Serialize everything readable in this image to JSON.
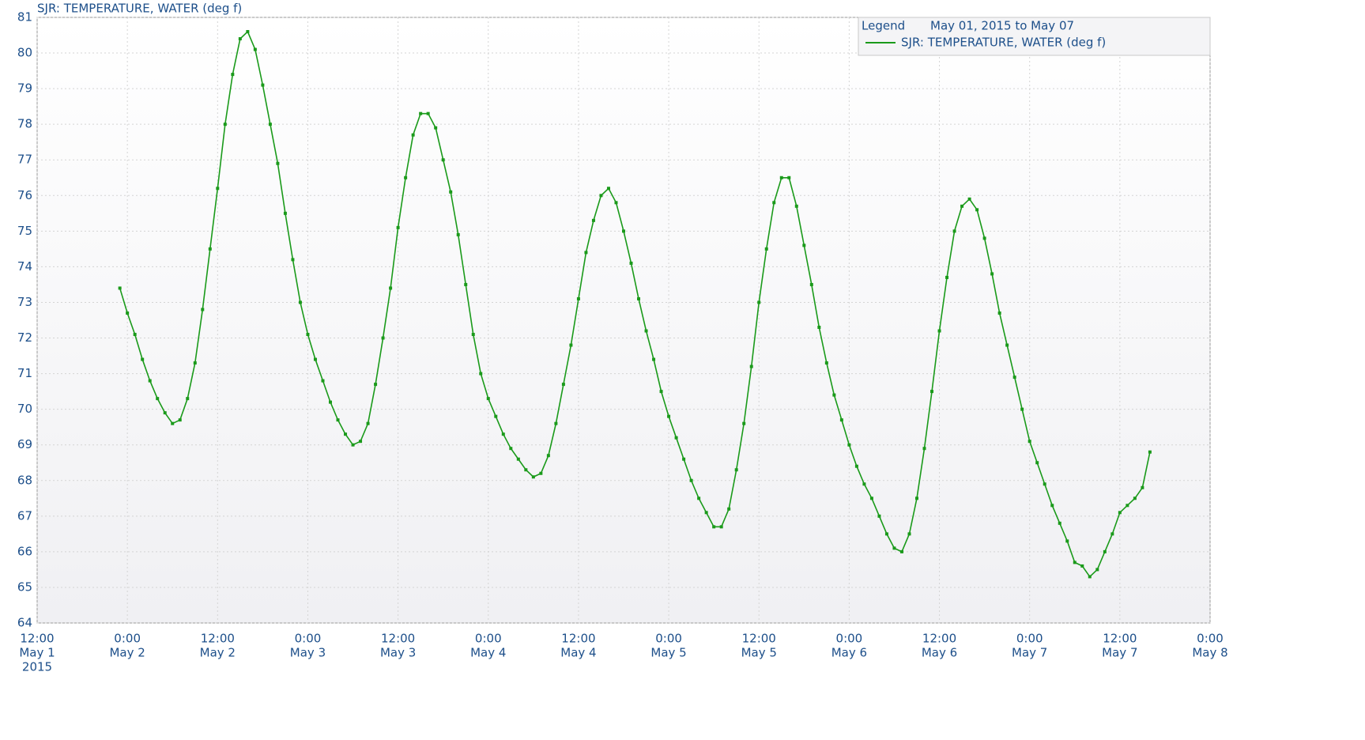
{
  "chart_data": {
    "type": "line",
    "title": "SJR: TEMPERATURE, WATER (deg f)",
    "legend_title": "Legend",
    "legend_range": "May 01, 2015 to May 07",
    "legend_position": "top-right",
    "grid": true,
    "x": [
      "2015-05-01 23:00",
      "2015-05-02 00:00",
      "2015-05-02 01:00",
      "2015-05-02 02:00",
      "2015-05-02 03:00",
      "2015-05-02 04:00",
      "2015-05-02 05:00",
      "2015-05-02 06:00",
      "2015-05-02 07:00",
      "2015-05-02 08:00",
      "2015-05-02 09:00",
      "2015-05-02 10:00",
      "2015-05-02 11:00",
      "2015-05-02 12:00",
      "2015-05-02 13:00",
      "2015-05-02 14:00",
      "2015-05-02 15:00",
      "2015-05-02 16:00",
      "2015-05-02 17:00",
      "2015-05-02 18:00",
      "2015-05-02 19:00",
      "2015-05-02 20:00",
      "2015-05-02 21:00",
      "2015-05-02 22:00",
      "2015-05-02 23:00",
      "2015-05-03 00:00",
      "2015-05-03 01:00",
      "2015-05-03 02:00",
      "2015-05-03 03:00",
      "2015-05-03 04:00",
      "2015-05-03 05:00",
      "2015-05-03 06:00",
      "2015-05-03 07:00",
      "2015-05-03 08:00",
      "2015-05-03 09:00",
      "2015-05-03 10:00",
      "2015-05-03 11:00",
      "2015-05-03 12:00",
      "2015-05-03 13:00",
      "2015-05-03 14:00",
      "2015-05-03 15:00",
      "2015-05-03 16:00",
      "2015-05-03 17:00",
      "2015-05-03 18:00",
      "2015-05-03 19:00",
      "2015-05-03 20:00",
      "2015-05-03 21:00",
      "2015-05-03 22:00",
      "2015-05-03 23:00",
      "2015-05-04 00:00",
      "2015-05-04 01:00",
      "2015-05-04 02:00",
      "2015-05-04 03:00",
      "2015-05-04 04:00",
      "2015-05-04 05:00",
      "2015-05-04 06:00",
      "2015-05-04 07:00",
      "2015-05-04 08:00",
      "2015-05-04 09:00",
      "2015-05-04 10:00",
      "2015-05-04 11:00",
      "2015-05-04 12:00",
      "2015-05-04 13:00",
      "2015-05-04 14:00",
      "2015-05-04 15:00",
      "2015-05-04 16:00",
      "2015-05-04 17:00",
      "2015-05-04 18:00",
      "2015-05-04 19:00",
      "2015-05-04 20:00",
      "2015-05-04 21:00",
      "2015-05-04 22:00",
      "2015-05-04 23:00",
      "2015-05-05 00:00",
      "2015-05-05 01:00",
      "2015-05-05 02:00",
      "2015-05-05 03:00",
      "2015-05-05 04:00",
      "2015-05-05 05:00",
      "2015-05-05 06:00",
      "2015-05-05 07:00",
      "2015-05-05 08:00",
      "2015-05-05 09:00",
      "2015-05-05 10:00",
      "2015-05-05 11:00",
      "2015-05-05 12:00",
      "2015-05-05 13:00",
      "2015-05-05 14:00",
      "2015-05-05 15:00",
      "2015-05-05 16:00",
      "2015-05-05 17:00",
      "2015-05-05 18:00",
      "2015-05-05 19:00",
      "2015-05-05 20:00",
      "2015-05-05 21:00",
      "2015-05-05 22:00",
      "2015-05-05 23:00",
      "2015-05-06 00:00",
      "2015-05-06 01:00",
      "2015-05-06 02:00",
      "2015-05-06 03:00",
      "2015-05-06 04:00",
      "2015-05-06 05:00",
      "2015-05-06 06:00",
      "2015-05-06 07:00",
      "2015-05-06 08:00",
      "2015-05-06 09:00",
      "2015-05-06 10:00",
      "2015-05-06 11:00",
      "2015-05-06 12:00",
      "2015-05-06 13:00",
      "2015-05-06 14:00",
      "2015-05-06 15:00",
      "2015-05-06 16:00",
      "2015-05-06 17:00",
      "2015-05-06 18:00",
      "2015-05-06 19:00",
      "2015-05-06 20:00",
      "2015-05-06 21:00",
      "2015-05-06 22:00",
      "2015-05-06 23:00",
      "2015-05-07 00:00",
      "2015-05-07 01:00",
      "2015-05-07 02:00",
      "2015-05-07 03:00",
      "2015-05-07 04:00",
      "2015-05-07 05:00",
      "2015-05-07 06:00",
      "2015-05-07 07:00",
      "2015-05-07 08:00",
      "2015-05-07 09:00",
      "2015-05-07 10:00",
      "2015-05-07 11:00",
      "2015-05-07 12:00",
      "2015-05-07 13:00",
      "2015-05-07 14:00",
      "2015-05-07 15:00",
      "2015-05-07 16:00"
    ],
    "series": [
      {
        "name": "SJR: TEMPERATURE, WATER (deg f)",
        "color": "#1a9a1a",
        "values": [
          73.4,
          72.7,
          72.1,
          71.4,
          70.8,
          70.3,
          69.9,
          69.6,
          69.7,
          70.3,
          71.3,
          72.8,
          74.5,
          76.2,
          78.0,
          79.4,
          80.4,
          80.6,
          80.1,
          79.1,
          78.0,
          76.9,
          75.5,
          74.2,
          73.0,
          72.1,
          71.4,
          70.8,
          70.2,
          69.7,
          69.3,
          69.0,
          69.1,
          69.6,
          70.7,
          72.0,
          73.4,
          75.1,
          76.5,
          77.7,
          78.3,
          78.3,
          77.9,
          77.0,
          76.1,
          74.9,
          73.5,
          72.1,
          71.0,
          70.3,
          69.8,
          69.3,
          68.9,
          68.6,
          68.3,
          68.1,
          68.2,
          68.7,
          69.6,
          70.7,
          71.8,
          73.1,
          74.4,
          75.3,
          76.0,
          76.2,
          75.8,
          75.0,
          74.1,
          73.1,
          72.2,
          71.4,
          70.5,
          69.8,
          69.2,
          68.6,
          68.0,
          67.5,
          67.1,
          66.7,
          66.7,
          67.2,
          68.3,
          69.6,
          71.2,
          73.0,
          74.5,
          75.8,
          76.5,
          76.5,
          75.7,
          74.6,
          73.5,
          72.3,
          71.3,
          70.4,
          69.7,
          69.0,
          68.4,
          67.9,
          67.5,
          67.0,
          66.5,
          66.1,
          66.0,
          66.5,
          67.5,
          68.9,
          70.5,
          72.2,
          73.7,
          75.0,
          75.7,
          75.9,
          75.6,
          74.8,
          73.8,
          72.7,
          71.8,
          70.9,
          70.0,
          69.1,
          68.5,
          67.9,
          67.3,
          66.8,
          66.3,
          65.7,
          65.6,
          65.3,
          65.5,
          66.0,
          66.5,
          67.1,
          67.3,
          67.5,
          67.8,
          68.8
        ]
      }
    ],
    "ylim": [
      64,
      81
    ],
    "yticks": [
      64,
      65,
      66,
      67,
      68,
      69,
      70,
      71,
      72,
      73,
      74,
      75,
      76,
      77,
      78,
      79,
      80,
      81
    ],
    "xlim": [
      "2015-05-01 12:00",
      "2015-05-08 00:00"
    ],
    "xticks": [
      {
        "value": "2015-05-01 12:00",
        "label": [
          "12:00",
          "May 1",
          "2015"
        ]
      },
      {
        "value": "2015-05-02 00:00",
        "label": [
          "0:00",
          "May 2"
        ]
      },
      {
        "value": "2015-05-02 12:00",
        "label": [
          "12:00",
          "May 2"
        ]
      },
      {
        "value": "2015-05-03 00:00",
        "label": [
          "0:00",
          "May 3"
        ]
      },
      {
        "value": "2015-05-03 12:00",
        "label": [
          "12:00",
          "May 3"
        ]
      },
      {
        "value": "2015-05-04 00:00",
        "label": [
          "0:00",
          "May 4"
        ]
      },
      {
        "value": "2015-05-04 12:00",
        "label": [
          "12:00",
          "May 4"
        ]
      },
      {
        "value": "2015-05-05 00:00",
        "label": [
          "0:00",
          "May 5"
        ]
      },
      {
        "value": "2015-05-05 12:00",
        "label": [
          "12:00",
          "May 5"
        ]
      },
      {
        "value": "2015-05-06 00:00",
        "label": [
          "0:00",
          "May 6"
        ]
      },
      {
        "value": "2015-05-06 12:00",
        "label": [
          "12:00",
          "May 6"
        ]
      },
      {
        "value": "2015-05-07 00:00",
        "label": [
          "0:00",
          "May 7"
        ]
      },
      {
        "value": "2015-05-07 12:00",
        "label": [
          "12:00",
          "May 7"
        ]
      },
      {
        "value": "2015-05-08 00:00",
        "label": [
          "0:00",
          "May 8"
        ]
      }
    ]
  }
}
